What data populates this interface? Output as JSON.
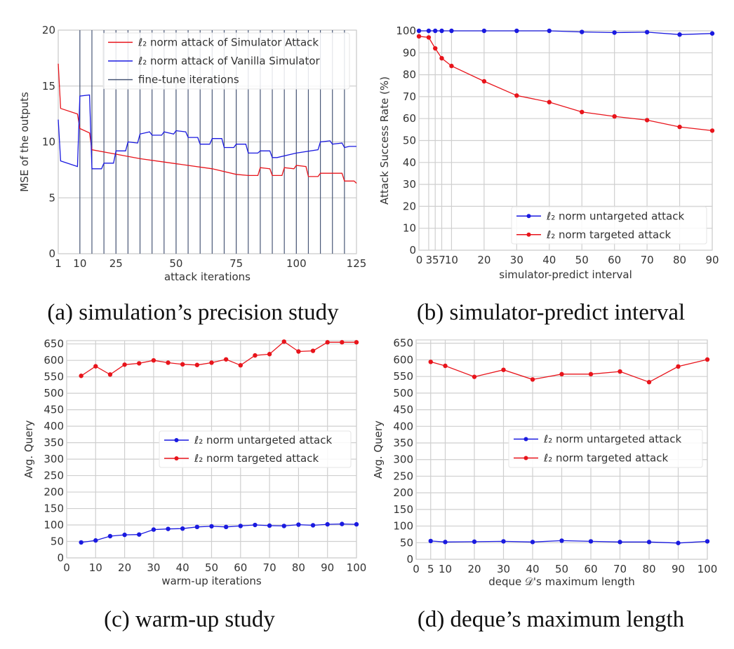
{
  "captions": {
    "a": "(a) simulation’s precision study",
    "b": "(b) simulator-predict interval",
    "c": "(c) warm-up study",
    "d": "(d) deque’s maximum length"
  },
  "colors": {
    "red": "#e8141b",
    "blue": "#1a1ae0",
    "finetune": "#4a5878",
    "grid": "#cfcfcf",
    "text": "#333333"
  },
  "chart_data": [
    {
      "id": "a",
      "type": "line",
      "title": "simulation’s precision study",
      "xlabel": "attack iterations",
      "ylabel": "MSE of the outputs",
      "xlim": [
        1,
        125
      ],
      "ylim": [
        0,
        20
      ],
      "xticks": [
        1,
        10,
        25,
        50,
        75,
        100,
        125
      ],
      "yticks": [
        0,
        5,
        10,
        15,
        20
      ],
      "grid": true,
      "legend_position": "top-right",
      "vlines": {
        "name": "fine-tune iterations",
        "x": [
          10,
          15,
          20,
          25,
          30,
          35,
          40,
          45,
          50,
          55,
          60,
          65,
          70,
          75,
          80,
          85,
          90,
          95,
          100,
          105,
          110,
          115,
          120
        ]
      },
      "series": [
        {
          "name": "ℓ₂ norm attack of Simulator Attack",
          "color": "red",
          "markers": false,
          "points": [
            [
              1,
              17
            ],
            [
              2,
              13
            ],
            [
              9,
              12.5
            ],
            [
              10,
              11.2
            ],
            [
              14,
              10.8
            ],
            [
              15,
              9.3
            ],
            [
              25,
              8.9
            ],
            [
              35,
              8.5
            ],
            [
              45,
              8.2
            ],
            [
              55,
              7.9
            ],
            [
              65,
              7.6
            ],
            [
              75,
              7.1
            ],
            [
              80,
              7.0
            ],
            [
              84,
              7.0
            ],
            [
              85,
              7.7
            ],
            [
              89,
              7.6
            ],
            [
              90,
              7.0
            ],
            [
              94,
              7.0
            ],
            [
              95,
              7.7
            ],
            [
              99,
              7.6
            ],
            [
              100,
              7.9
            ],
            [
              104,
              7.8
            ],
            [
              105,
              6.9
            ],
            [
              109,
              6.9
            ],
            [
              110,
              7.2
            ],
            [
              119,
              7.2
            ],
            [
              120,
              6.5
            ],
            [
              124,
              6.5
            ],
            [
              125,
              6.3
            ]
          ]
        },
        {
          "name": "ℓ₂ norm attack of Vanilla Simulator",
          "color": "blue",
          "markers": false,
          "points": [
            [
              1,
              12
            ],
            [
              2,
              8.3
            ],
            [
              9,
              7.8
            ],
            [
              10,
              14.1
            ],
            [
              14,
              14.2
            ],
            [
              15,
              7.6
            ],
            [
              19,
              7.6
            ],
            [
              20,
              8.1
            ],
            [
              24,
              8.1
            ],
            [
              25,
              9.2
            ],
            [
              29,
              9.2
            ],
            [
              30,
              10
            ],
            [
              34,
              9.9
            ],
            [
              35,
              10.7
            ],
            [
              39,
              10.9
            ],
            [
              40,
              10.6
            ],
            [
              44,
              10.6
            ],
            [
              45,
              10.9
            ],
            [
              49,
              10.7
            ],
            [
              50,
              11
            ],
            [
              54,
              10.9
            ],
            [
              55,
              10.4
            ],
            [
              59,
              10.4
            ],
            [
              60,
              9.8
            ],
            [
              64,
              9.8
            ],
            [
              65,
              10.3
            ],
            [
              69,
              10.3
            ],
            [
              70,
              9.5
            ],
            [
              74,
              9.5
            ],
            [
              75,
              9.8
            ],
            [
              79,
              9.8
            ],
            [
              80,
              9.0
            ],
            [
              84,
              9.0
            ],
            [
              85,
              9.2
            ],
            [
              89,
              9.2
            ],
            [
              90,
              8.6
            ],
            [
              92,
              8.6
            ],
            [
              100,
              9.0
            ],
            [
              109,
              9.3
            ],
            [
              110,
              10.0
            ],
            [
              114,
              10.1
            ],
            [
              115,
              9.8
            ],
            [
              119,
              9.9
            ],
            [
              120,
              9.5
            ],
            [
              122,
              9.6
            ],
            [
              125,
              9.6
            ]
          ]
        }
      ]
    },
    {
      "id": "b",
      "type": "line",
      "title": "simulator-predict interval",
      "xlabel": "simulator-predict interval",
      "ylabel": "Attack Success Rate (%)",
      "xlim": [
        0,
        90
      ],
      "ylim": [
        0,
        100
      ],
      "xticks": [
        0,
        3,
        5,
        7,
        10,
        20,
        30,
        40,
        50,
        60,
        70,
        80,
        90
      ],
      "yticks": [
        0,
        10,
        20,
        30,
        40,
        50,
        60,
        70,
        80,
        90,
        100
      ],
      "grid": true,
      "legend_position": "lower-right",
      "series": [
        {
          "name": "ℓ₂ norm untargeted attack",
          "color": "blue",
          "markers": true,
          "points": [
            [
              0,
              100
            ],
            [
              3,
              100
            ],
            [
              5,
              100
            ],
            [
              7,
              100
            ],
            [
              10,
              100
            ],
            [
              20,
              100
            ],
            [
              30,
              100
            ],
            [
              40,
              100
            ],
            [
              50,
              99.5
            ],
            [
              60,
              99.2
            ],
            [
              70,
              99.4
            ],
            [
              80,
              98.3
            ],
            [
              90,
              98.8
            ]
          ]
        },
        {
          "name": "ℓ₂ norm targeted attack",
          "color": "red",
          "markers": true,
          "points": [
            [
              0,
              97.5
            ],
            [
              3,
              97
            ],
            [
              5,
              92
            ],
            [
              7,
              87.5
            ],
            [
              10,
              84
            ],
            [
              20,
              77
            ],
            [
              30,
              70.5
            ],
            [
              40,
              67.5
            ],
            [
              50,
              63
            ],
            [
              60,
              61
            ],
            [
              70,
              59.3
            ],
            [
              80,
              56.2
            ],
            [
              90,
              54.5
            ]
          ]
        }
      ]
    },
    {
      "id": "c",
      "type": "line",
      "title": "warm-up study",
      "xlabel": "warm-up iterations",
      "ylabel": "Avg. Query",
      "xlim": [
        0,
        100
      ],
      "ylim": [
        0,
        660
      ],
      "xticks": [
        0,
        10,
        20,
        30,
        40,
        50,
        60,
        70,
        80,
        90,
        100
      ],
      "yticks": [
        0,
        50,
        100,
        150,
        200,
        250,
        300,
        350,
        400,
        450,
        500,
        550,
        600,
        650
      ],
      "grid": true,
      "legend_position": "center-right",
      "series": [
        {
          "name": "ℓ₂ norm untargeted attack",
          "color": "blue",
          "markers": true,
          "points": [
            [
              5,
              47
            ],
            [
              10,
              53
            ],
            [
              15,
              66
            ],
            [
              20,
              70
            ],
            [
              25,
              71
            ],
            [
              30,
              86
            ],
            [
              35,
              88
            ],
            [
              40,
              89
            ],
            [
              45,
              94
            ],
            [
              50,
              96
            ],
            [
              55,
              94
            ],
            [
              60,
              97
            ],
            [
              65,
              100
            ],
            [
              70,
              98
            ],
            [
              75,
              97
            ],
            [
              80,
              101
            ],
            [
              85,
              99
            ],
            [
              90,
              102
            ],
            [
              95,
              103
            ],
            [
              100,
              102
            ]
          ]
        },
        {
          "name": "ℓ₂ norm targeted attack",
          "color": "red",
          "markers": true,
          "points": [
            [
              5,
              553
            ],
            [
              10,
              582
            ],
            [
              15,
              557
            ],
            [
              20,
              587
            ],
            [
              25,
              591
            ],
            [
              30,
              600
            ],
            [
              35,
              593
            ],
            [
              40,
              588
            ],
            [
              45,
              586
            ],
            [
              50,
              593
            ],
            [
              55,
              603
            ],
            [
              60,
              585
            ],
            [
              65,
              615
            ],
            [
              70,
              619
            ],
            [
              75,
              657
            ],
            [
              80,
              627
            ],
            [
              85,
              629
            ],
            [
              90,
              655
            ],
            [
              95,
              655
            ],
            [
              100,
              655
            ]
          ]
        }
      ]
    },
    {
      "id": "d",
      "type": "line",
      "title": "deque’s maximum length",
      "xlabel": "deque 𝒟's maximum length",
      "ylabel": "Avg. Query",
      "xlim": [
        0,
        100
      ],
      "ylim": [
        0,
        660
      ],
      "xticks": [
        0,
        5,
        10,
        20,
        30,
        40,
        50,
        60,
        70,
        80,
        90,
        100
      ],
      "yticks": [
        0,
        50,
        100,
        150,
        200,
        250,
        300,
        350,
        400,
        450,
        500,
        550,
        600,
        650
      ],
      "grid": true,
      "legend_position": "center-right",
      "series": [
        {
          "name": "ℓ₂ norm untargeted attack",
          "color": "blue",
          "markers": true,
          "points": [
            [
              5,
              55
            ],
            [
              10,
              52
            ],
            [
              20,
              53
            ],
            [
              30,
              54
            ],
            [
              40,
              52
            ],
            [
              50,
              56
            ],
            [
              60,
              54
            ],
            [
              70,
              52
            ],
            [
              80,
              52
            ],
            [
              90,
              49
            ],
            [
              100,
              54
            ]
          ]
        },
        {
          "name": "ℓ₂ norm targeted attack",
          "color": "red",
          "markers": true,
          "points": [
            [
              5,
              594
            ],
            [
              10,
              582
            ],
            [
              20,
              549
            ],
            [
              30,
              570
            ],
            [
              40,
              541
            ],
            [
              50,
              557
            ],
            [
              60,
              557
            ],
            [
              70,
              565
            ],
            [
              80,
              533
            ],
            [
              90,
              580
            ],
            [
              100,
              601
            ]
          ]
        }
      ]
    }
  ]
}
